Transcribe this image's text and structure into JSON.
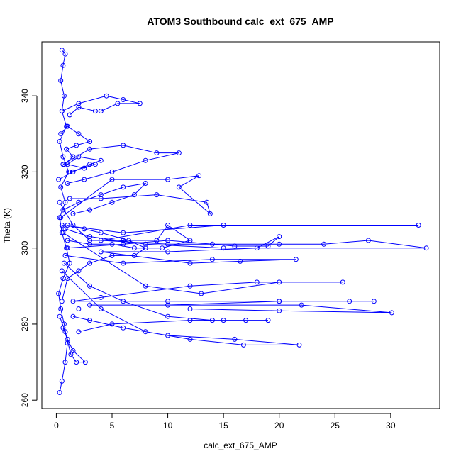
{
  "chart_data": {
    "type": "line",
    "title": "ATOM3 Southbound calc_ext_675_AMP",
    "xlabel": "calc_ext_675_AMP",
    "ylabel": "Theta (K)",
    "xlim": [
      -1.3,
      34.4
    ],
    "ylim": [
      257.8,
      354.2
    ],
    "x_ticks": [
      0,
      5,
      10,
      15,
      20,
      25,
      30
    ],
    "y_ticks": [
      260,
      280,
      300,
      320,
      340
    ],
    "grid": false,
    "legend": "none",
    "marker": "open-circle",
    "color": "#0000ff",
    "series": [
      {
        "points": [
          [
            0.3,
            262
          ],
          [
            0.5,
            265
          ],
          [
            0.8,
            270
          ],
          [
            1.0,
            275
          ],
          [
            0.7,
            280
          ],
          [
            0.4,
            284
          ],
          [
            0.2,
            288
          ],
          [
            0.6,
            292
          ],
          [
            1.2,
            296
          ],
          [
            0.9,
            300
          ],
          [
            0.5,
            304
          ],
          [
            0.3,
            308
          ],
          [
            0.8,
            312
          ],
          [
            0.4,
            316
          ],
          [
            1.1,
            320
          ],
          [
            0.6,
            324
          ],
          [
            0.3,
            328
          ],
          [
            0.9,
            332
          ],
          [
            0.5,
            336
          ],
          [
            0.7,
            340
          ],
          [
            0.4,
            344
          ],
          [
            0.6,
            348
          ],
          [
            0.8,
            351
          ],
          [
            0.5,
            352
          ]
        ]
      },
      {
        "points": [
          [
            0.5,
            306
          ],
          [
            6.0,
            304
          ],
          [
            15.0,
            306
          ],
          [
            32.5,
            306
          ],
          [
            12.0,
            306
          ],
          [
            4.0,
            302
          ],
          [
            10.0,
            301
          ],
          [
            20.0,
            301
          ],
          [
            24.0,
            301
          ],
          [
            28.0,
            302
          ],
          [
            33.2,
            300
          ],
          [
            15.0,
            300
          ],
          [
            8.0,
            301
          ],
          [
            3.0,
            303
          ],
          [
            0.8,
            305
          ]
        ]
      },
      {
        "points": [
          [
            0.6,
            304
          ],
          [
            8.0,
            290
          ],
          [
            13.0,
            288
          ],
          [
            20.0,
            291
          ],
          [
            25.7,
            291
          ],
          [
            18.0,
            291
          ],
          [
            12.0,
            290
          ],
          [
            4.0,
            287
          ],
          [
            1.5,
            286
          ],
          [
            10.0,
            286
          ],
          [
            20.0,
            286
          ],
          [
            26.3,
            286
          ],
          [
            28.5,
            286
          ],
          [
            20.0,
            286
          ],
          [
            10.0,
            285
          ],
          [
            3.0,
            285
          ],
          [
            22.0,
            285
          ],
          [
            30.1,
            283
          ],
          [
            20.0,
            283.5
          ],
          [
            12.0,
            284
          ],
          [
            2.0,
            284
          ]
        ]
      },
      {
        "points": [
          [
            0.8,
            298
          ],
          [
            6.0,
            296
          ],
          [
            14.0,
            297
          ],
          [
            21.5,
            297
          ],
          [
            16.5,
            296.5
          ],
          [
            12.0,
            296
          ],
          [
            4.0,
            299
          ],
          [
            10.0,
            299
          ],
          [
            18.0,
            300
          ],
          [
            20.0,
            303
          ],
          [
            19.0,
            300.5
          ],
          [
            16.0,
            300.5
          ],
          [
            14.0,
            301
          ],
          [
            10.0,
            302
          ],
          [
            6.0,
            301
          ],
          [
            1.0,
            300
          ]
        ]
      },
      {
        "points": [
          [
            0.7,
            296
          ],
          [
            3.0,
            290
          ],
          [
            6.0,
            286
          ],
          [
            10.0,
            282
          ],
          [
            14.0,
            281
          ],
          [
            17.0,
            281
          ],
          [
            19.0,
            281
          ],
          [
            15.0,
            281
          ],
          [
            12.0,
            281
          ],
          [
            5.0,
            280
          ],
          [
            2.0,
            278
          ]
        ]
      },
      {
        "points": [
          [
            0.5,
            294
          ],
          [
            4.0,
            284
          ],
          [
            8.0,
            278
          ],
          [
            12.0,
            276
          ],
          [
            16.8,
            274.5
          ],
          [
            21.8,
            274.5
          ],
          [
            16.0,
            276
          ],
          [
            10.0,
            277
          ],
          [
            6.0,
            279
          ],
          [
            3.0,
            281
          ],
          [
            1.5,
            282
          ]
        ]
      },
      {
        "points": [
          [
            0.4,
            308
          ],
          [
            5.0,
            318
          ],
          [
            10.0,
            318
          ],
          [
            12.8,
            319
          ],
          [
            11.0,
            316
          ],
          [
            13.8,
            309
          ],
          [
            13.5,
            312
          ],
          [
            9.0,
            314
          ],
          [
            4.0,
            313
          ],
          [
            1.2,
            313
          ]
        ]
      },
      {
        "points": [
          [
            0.6,
            322
          ],
          [
            3.0,
            326
          ],
          [
            6.0,
            327
          ],
          [
            9.0,
            325
          ],
          [
            11.0,
            325
          ],
          [
            8.0,
            323
          ],
          [
            5.0,
            320
          ],
          [
            2.5,
            318
          ],
          [
            1.0,
            317
          ]
        ]
      },
      {
        "points": [
          [
            0.5,
            336
          ],
          [
            2.0,
            338
          ],
          [
            4.5,
            340
          ],
          [
            6.0,
            339
          ],
          [
            7.5,
            338
          ],
          [
            5.5,
            338
          ],
          [
            4.0,
            336
          ],
          [
            3.5,
            336
          ],
          [
            2.0,
            337
          ],
          [
            1.2,
            335
          ]
        ]
      },
      {
        "points": [
          [
            0.3,
            312
          ],
          [
            1.5,
            306
          ],
          [
            3.0,
            302
          ],
          [
            6.0,
            302
          ],
          [
            9.0,
            302
          ],
          [
            10.0,
            306
          ],
          [
            12.0,
            302
          ],
          [
            9.5,
            300
          ],
          [
            7.0,
            300
          ],
          [
            5.0,
            301
          ],
          [
            3.0,
            301
          ],
          [
            1.0,
            302
          ]
        ]
      },
      {
        "points": [
          [
            0.5,
            286
          ],
          [
            1.0,
            292
          ],
          [
            2.0,
            294
          ],
          [
            3.0,
            296
          ],
          [
            5.0,
            298
          ],
          [
            7.0,
            298
          ],
          [
            8.0,
            300
          ],
          [
            6.5,
            302
          ],
          [
            4.0,
            304
          ],
          [
            2.5,
            305
          ],
          [
            1.0,
            306
          ]
        ]
      },
      {
        "points": [
          [
            0.2,
            318
          ],
          [
            1.5,
            320
          ],
          [
            3.0,
            322
          ],
          [
            4.0,
            323
          ],
          [
            2.0,
            324
          ],
          [
            1.0,
            322
          ],
          [
            2.5,
            321
          ],
          [
            3.5,
            322
          ],
          [
            1.2,
            320
          ]
        ]
      },
      {
        "points": [
          [
            0.4,
            330
          ],
          [
            1.0,
            332
          ],
          [
            2.0,
            330
          ],
          [
            3.0,
            328
          ],
          [
            1.8,
            327
          ],
          [
            0.9,
            326
          ],
          [
            1.5,
            324
          ],
          [
            0.7,
            322
          ]
        ]
      },
      {
        "points": [
          [
            0.3,
            282
          ],
          [
            0.8,
            278
          ],
          [
            1.3,
            272
          ],
          [
            1.8,
            270
          ],
          [
            2.6,
            270
          ],
          [
            1.5,
            273
          ],
          [
            1.0,
            276
          ],
          [
            0.6,
            279
          ]
        ]
      },
      {
        "points": [
          [
            0.6,
            310
          ],
          [
            2.0,
            312
          ],
          [
            4.0,
            314
          ],
          [
            6.0,
            316
          ],
          [
            8.0,
            317
          ],
          [
            7.0,
            314
          ],
          [
            5.0,
            312
          ],
          [
            3.0,
            310
          ],
          [
            1.5,
            309
          ]
        ]
      }
    ]
  }
}
